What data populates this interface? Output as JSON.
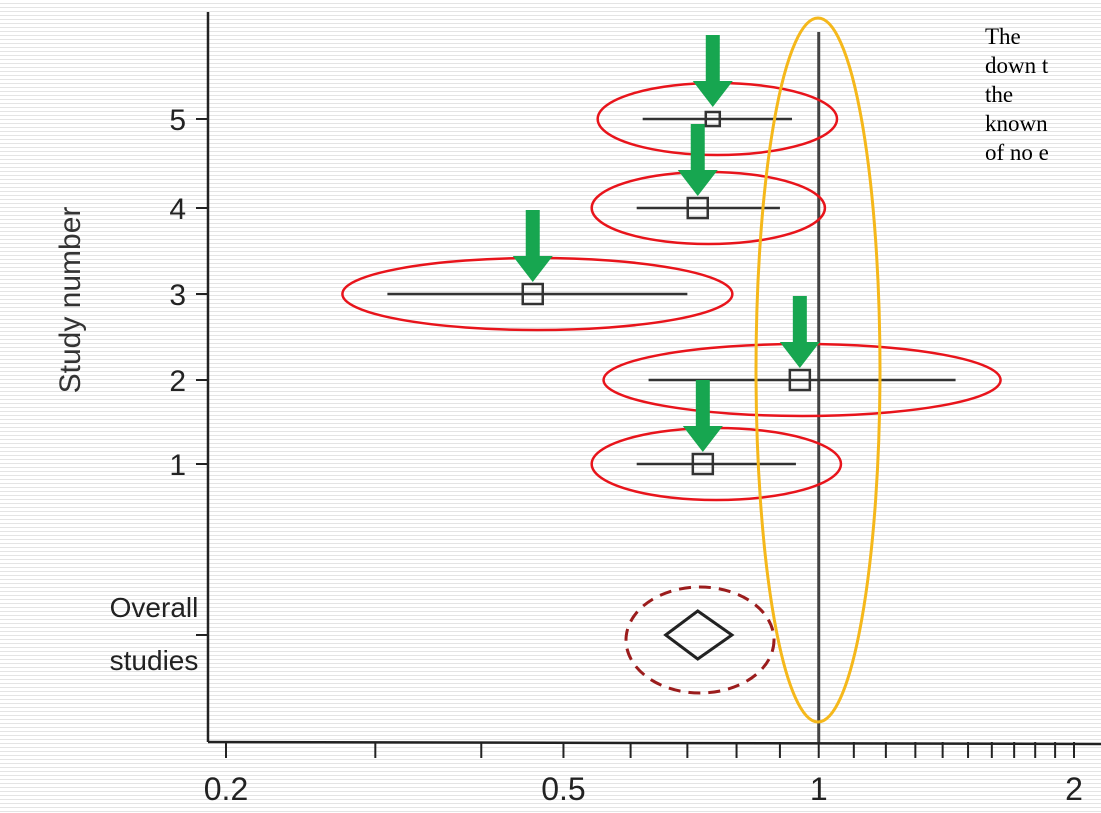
{
  "chart_data": {
    "type": "forest",
    "xscale": "log",
    "xlim": [
      0.2,
      2
    ],
    "xticks": [
      "0.2",
      "0.5",
      "1",
      "2"
    ],
    "ylabel": "Study number",
    "reference_line": 1,
    "studies": [
      {
        "label": "5",
        "estimate": 0.75,
        "ci": [
          0.62,
          0.93
        ]
      },
      {
        "label": "4",
        "estimate": 0.72,
        "ci": [
          0.61,
          0.9
        ]
      },
      {
        "label": "3",
        "estimate": 0.46,
        "ci": [
          0.31,
          0.7
        ]
      },
      {
        "label": "2",
        "estimate": 0.95,
        "ci": [
          0.63,
          1.45
        ]
      },
      {
        "label": "1",
        "estimate": 0.73,
        "ci": [
          0.61,
          0.94
        ]
      }
    ],
    "overall": {
      "label_line1": "Overall",
      "label_line2": "studies",
      "estimate": 0.72,
      "ci": [
        0.66,
        0.79
      ]
    },
    "annotation_lines": [
      "The",
      "down t",
      "the",
      "known",
      "of no e"
    ],
    "colors": {
      "axis": "#222222",
      "highlight_study": "#e8141b",
      "highlight_null": "#f5b81b",
      "highlight_overall": "#9b1c1c",
      "arrow": "#17a650"
    }
  }
}
